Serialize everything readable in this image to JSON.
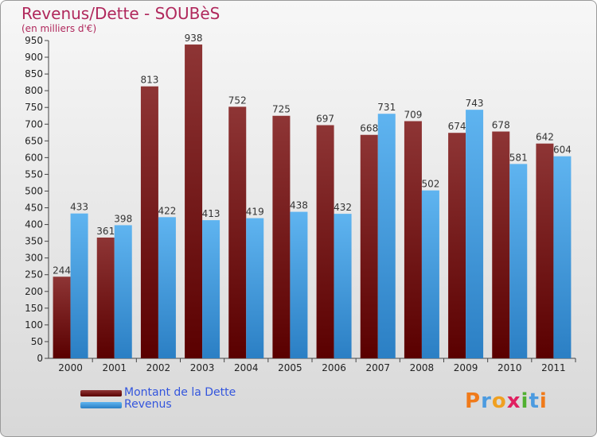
{
  "chart_data": {
    "type": "bar",
    "title": "Revenus/Dette - SOUBèS",
    "subtitle": "(en milliers d'€)",
    "categories": [
      "2000",
      "2001",
      "2002",
      "2003",
      "2004",
      "2005",
      "2006",
      "2007",
      "2008",
      "2009",
      "2010",
      "2011"
    ],
    "series": [
      {
        "name": "Montant de la Dette",
        "color": "#7a1010",
        "values": [
          244,
          361,
          813,
          938,
          752,
          725,
          697,
          668,
          709,
          674,
          678,
          642
        ]
      },
      {
        "name": "Revenus",
        "color": "#4aa3e8",
        "values": [
          433,
          398,
          422,
          413,
          419,
          438,
          432,
          731,
          502,
          743,
          581,
          604
        ]
      }
    ],
    "ylim": [
      0,
      950
    ],
    "ytick_step": 50,
    "grid": false,
    "legend_position": "bottom-left"
  },
  "brand": {
    "logo_text": "Proxiti"
  }
}
